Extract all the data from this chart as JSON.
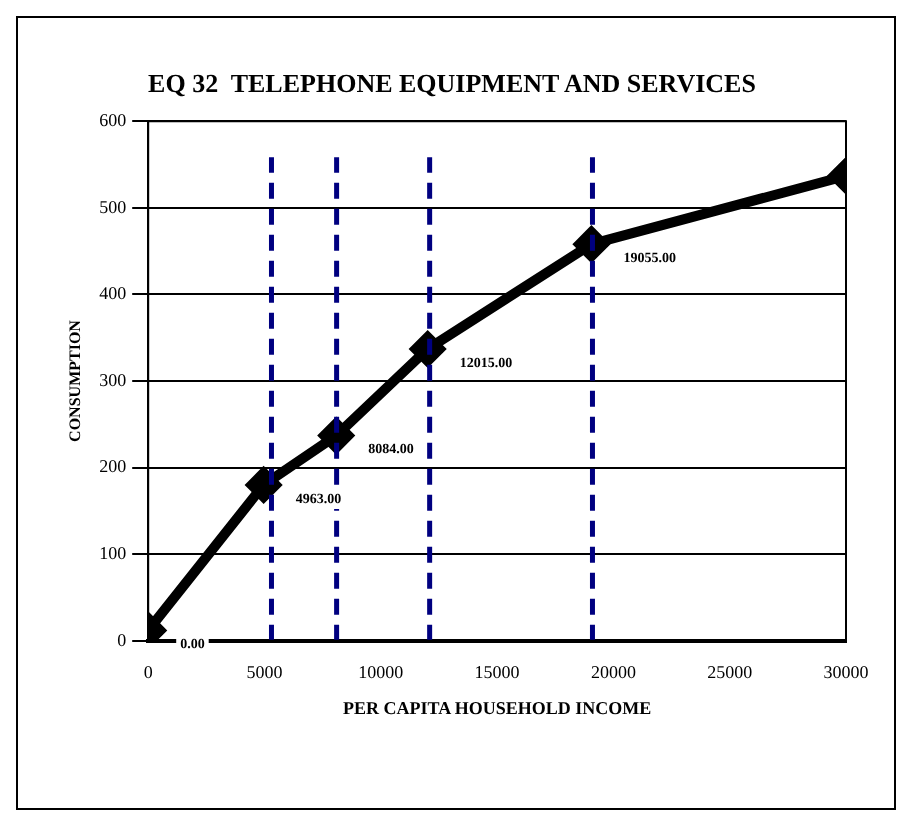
{
  "chart_data": {
    "type": "line",
    "title": "EQ 32  TELEPHONE EQUIPMENT AND SERVICES",
    "xlabel": "PER CAPITA HOUSEHOLD INCOME",
    "ylabel": "CONSUMPTION",
    "x": [
      0,
      4963,
      8084,
      12015,
      19055,
      30000
    ],
    "series": [
      {
        "color": "#000000",
        "values": [
          12,
          180,
          237,
          337,
          458,
          537
        ]
      }
    ],
    "xlim": [
      0,
      30000
    ],
    "xticks": [
      0,
      5000,
      10000,
      15000,
      20000,
      25000,
      30000
    ],
    "ylim": [
      0,
      600
    ],
    "yticks": [
      0,
      100,
      200,
      300,
      400,
      500,
      600
    ],
    "grid": "y",
    "marker": "diamond",
    "line_style": "solid",
    "legend": false,
    "ref_lines": [
      {
        "axis": "x",
        "value": 5300,
        "color": "#000080",
        "line_style": "dashed"
      },
      {
        "axis": "x",
        "value": 8100,
        "color": "#000080",
        "line_style": "dashed"
      },
      {
        "axis": "x",
        "value": 12100,
        "color": "#000080",
        "line_style": "dashed"
      },
      {
        "axis": "x",
        "value": 19100,
        "color": "#000080",
        "line_style": "dashed"
      }
    ],
    "annotations": [
      {
        "text": "0.00",
        "x": 0,
        "y": 12
      },
      {
        "text": "4963.00",
        "x": 4963,
        "y": 180
      },
      {
        "text": "8084.00",
        "x": 8084,
        "y": 237
      },
      {
        "text": "12015.00",
        "x": 12015,
        "y": 337
      },
      {
        "text": "19055.00",
        "x": 19055,
        "y": 458
      }
    ]
  }
}
